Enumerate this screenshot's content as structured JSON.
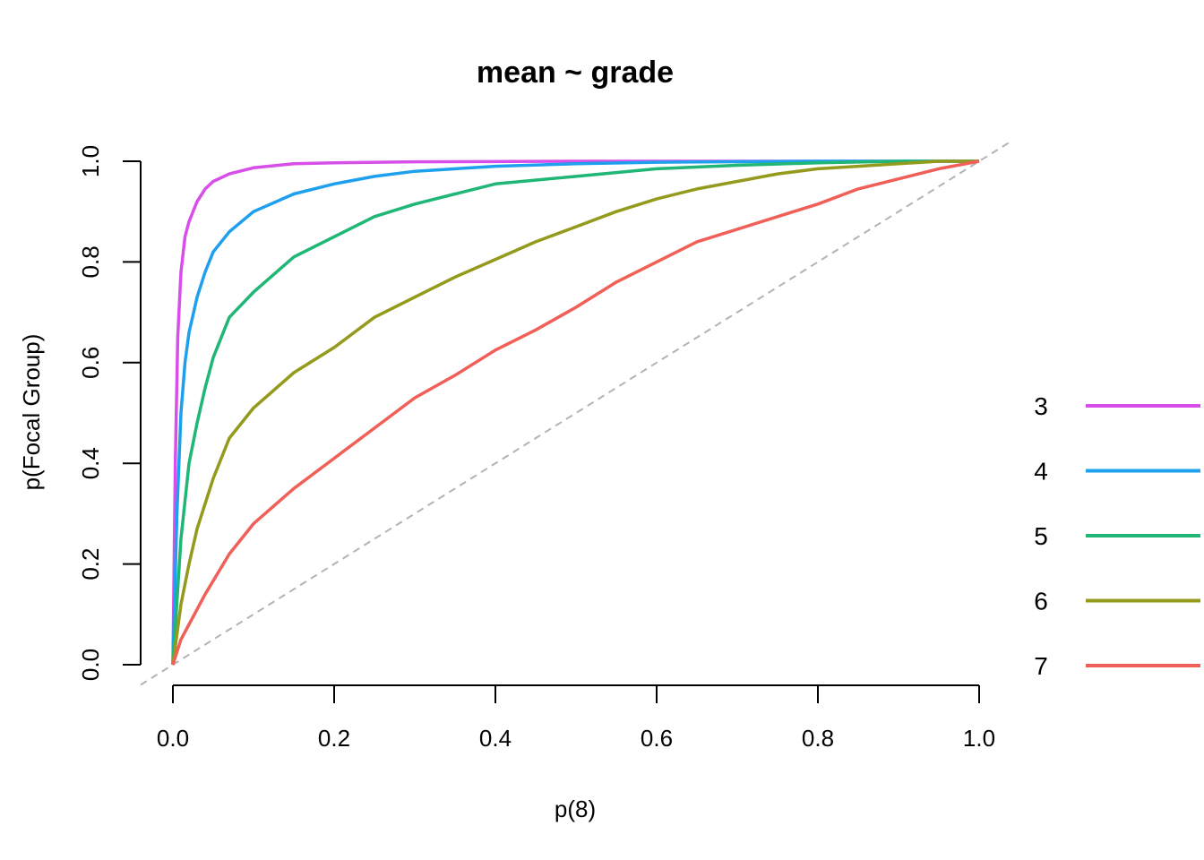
{
  "chart_data": {
    "type": "line",
    "title": "mean ~ grade",
    "xlabel": "p(8)",
    "ylabel": "p(Focal Group)",
    "xlim": [
      0,
      1
    ],
    "ylim": [
      0,
      1
    ],
    "x_ticks": [
      "0.0",
      "0.2",
      "0.4",
      "0.6",
      "0.8",
      "1.0"
    ],
    "y_ticks": [
      "0.0",
      "0.2",
      "0.4",
      "0.6",
      "0.8",
      "1.0"
    ],
    "grid": false,
    "legend_position": "right",
    "reference_line": {
      "style": "dashed",
      "color": "#b3b3b3",
      "from": [
        0,
        0
      ],
      "to": [
        1,
        1
      ]
    },
    "series": [
      {
        "name": "3",
        "color": "#d84ee8",
        "points": [
          [
            0,
            0
          ],
          [
            0.003,
            0.4
          ],
          [
            0.006,
            0.65
          ],
          [
            0.01,
            0.78
          ],
          [
            0.015,
            0.85
          ],
          [
            0.02,
            0.88
          ],
          [
            0.03,
            0.92
          ],
          [
            0.04,
            0.945
          ],
          [
            0.05,
            0.96
          ],
          [
            0.07,
            0.975
          ],
          [
            0.1,
            0.987
          ],
          [
            0.15,
            0.995
          ],
          [
            0.2,
            0.997
          ],
          [
            0.3,
            0.999
          ],
          [
            0.5,
            1.0
          ],
          [
            1.0,
            1.0
          ]
        ]
      },
      {
        "name": "4",
        "color": "#1ea0ee",
        "points": [
          [
            0,
            0
          ],
          [
            0.005,
            0.3
          ],
          [
            0.01,
            0.5
          ],
          [
            0.015,
            0.6
          ],
          [
            0.02,
            0.66
          ],
          [
            0.03,
            0.73
          ],
          [
            0.04,
            0.78
          ],
          [
            0.05,
            0.82
          ],
          [
            0.07,
            0.86
          ],
          [
            0.1,
            0.9
          ],
          [
            0.15,
            0.935
          ],
          [
            0.2,
            0.955
          ],
          [
            0.25,
            0.97
          ],
          [
            0.3,
            0.98
          ],
          [
            0.4,
            0.99
          ],
          [
            0.5,
            0.995
          ],
          [
            0.6,
            0.998
          ],
          [
            0.8,
            1.0
          ],
          [
            1.0,
            1.0
          ]
        ]
      },
      {
        "name": "5",
        "color": "#1fb676",
        "points": [
          [
            0,
            0
          ],
          [
            0.01,
            0.25
          ],
          [
            0.02,
            0.4
          ],
          [
            0.03,
            0.48
          ],
          [
            0.04,
            0.55
          ],
          [
            0.05,
            0.61
          ],
          [
            0.07,
            0.69
          ],
          [
            0.1,
            0.74
          ],
          [
            0.15,
            0.81
          ],
          [
            0.2,
            0.85
          ],
          [
            0.25,
            0.89
          ],
          [
            0.3,
            0.915
          ],
          [
            0.35,
            0.935
          ],
          [
            0.4,
            0.955
          ],
          [
            0.5,
            0.97
          ],
          [
            0.6,
            0.985
          ],
          [
            0.7,
            0.992
          ],
          [
            0.8,
            0.997
          ],
          [
            0.9,
            1.0
          ],
          [
            1.0,
            1.0
          ]
        ]
      },
      {
        "name": "6",
        "color": "#949a1c",
        "points": [
          [
            0,
            0
          ],
          [
            0.01,
            0.12
          ],
          [
            0.02,
            0.2
          ],
          [
            0.03,
            0.27
          ],
          [
            0.05,
            0.37
          ],
          [
            0.07,
            0.45
          ],
          [
            0.1,
            0.51
          ],
          [
            0.15,
            0.58
          ],
          [
            0.2,
            0.63
          ],
          [
            0.25,
            0.69
          ],
          [
            0.3,
            0.73
          ],
          [
            0.35,
            0.77
          ],
          [
            0.4,
            0.805
          ],
          [
            0.45,
            0.84
          ],
          [
            0.5,
            0.87
          ],
          [
            0.55,
            0.9
          ],
          [
            0.6,
            0.925
          ],
          [
            0.65,
            0.945
          ],
          [
            0.7,
            0.96
          ],
          [
            0.75,
            0.975
          ],
          [
            0.8,
            0.985
          ],
          [
            0.85,
            0.99
          ],
          [
            0.9,
            0.995
          ],
          [
            0.95,
            1.0
          ],
          [
            1.0,
            1.0
          ]
        ]
      },
      {
        "name": "7",
        "color": "#f05f58",
        "points": [
          [
            0,
            0
          ],
          [
            0.01,
            0.05
          ],
          [
            0.02,
            0.08
          ],
          [
            0.04,
            0.14
          ],
          [
            0.07,
            0.22
          ],
          [
            0.1,
            0.28
          ],
          [
            0.15,
            0.35
          ],
          [
            0.2,
            0.41
          ],
          [
            0.25,
            0.47
          ],
          [
            0.3,
            0.53
          ],
          [
            0.35,
            0.575
          ],
          [
            0.4,
            0.625
          ],
          [
            0.45,
            0.665
          ],
          [
            0.5,
            0.71
          ],
          [
            0.55,
            0.76
          ],
          [
            0.6,
            0.8
          ],
          [
            0.65,
            0.84
          ],
          [
            0.7,
            0.865
          ],
          [
            0.75,
            0.89
          ],
          [
            0.8,
            0.915
          ],
          [
            0.85,
            0.945
          ],
          [
            0.9,
            0.965
          ],
          [
            0.95,
            0.985
          ],
          [
            1.0,
            1.0
          ]
        ]
      }
    ]
  }
}
